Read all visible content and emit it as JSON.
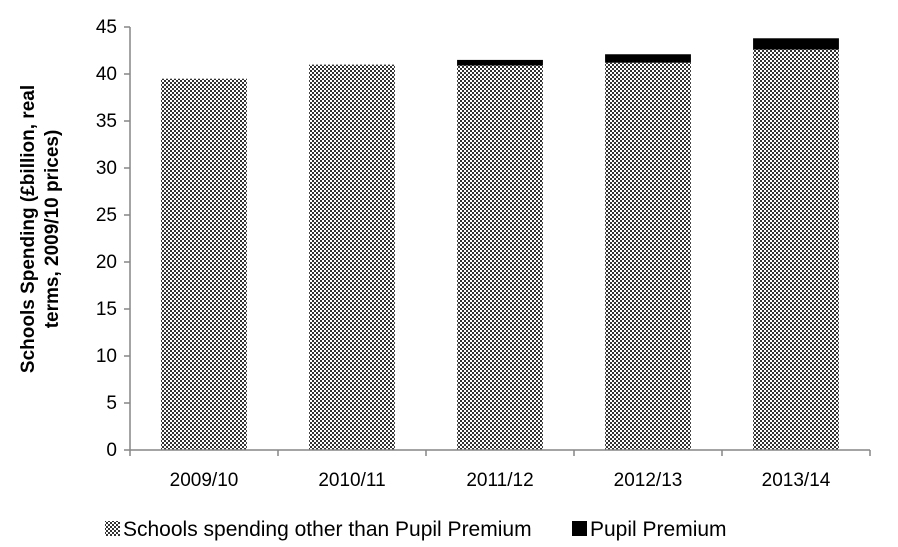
{
  "chart_data": {
    "type": "bar",
    "stacked": true,
    "title": "",
    "xlabel": "",
    "ylabel_lines": [
      "Schools Spending (£billion, real",
      "terms, 2009/10 prices)"
    ],
    "categories": [
      "2009/10",
      "2010/11",
      "2011/12",
      "2012/13",
      "2013/14"
    ],
    "ylim": [
      0,
      45
    ],
    "yticks": [
      0,
      5,
      10,
      15,
      20,
      25,
      30,
      35,
      40,
      45
    ],
    "series": [
      {
        "name": "Schools spending other than Pupil Premium",
        "values": [
          39.5,
          41.0,
          40.9,
          41.2,
          42.6
        ],
        "fill": "pattern-checker",
        "color": "#555555"
      },
      {
        "name": "Pupil Premium",
        "values": [
          0,
          0,
          0.6,
          0.9,
          1.2
        ],
        "fill": "solid",
        "color": "#000000"
      }
    ],
    "grid": false,
    "legend_position": "bottom"
  }
}
